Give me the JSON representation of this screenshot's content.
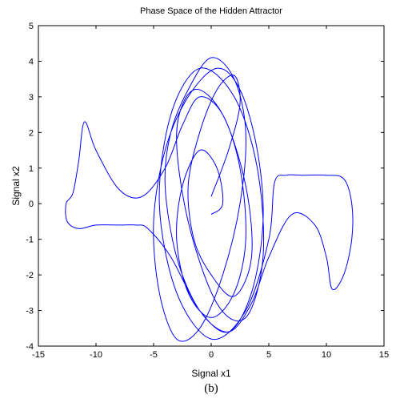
{
  "chart_data": {
    "type": "line",
    "title": "Phase Space of the Hidden Attractor",
    "xlabel": "Signal x1",
    "ylabel": "Signal x2",
    "caption": "(b)",
    "xlim": [
      -15,
      15
    ],
    "ylim": [
      -4,
      5
    ],
    "xticks": [
      -15,
      -10,
      -5,
      0,
      5,
      10,
      15
    ],
    "yticks": [
      -4,
      -3,
      -2,
      -1,
      0,
      1,
      2,
      3,
      4,
      5
    ],
    "grid": false,
    "line_color": "#0000ff",
    "series": [
      {
        "x": [
          0.0,
          1.5,
          2.5,
          2.0,
          0.5,
          -1.0,
          -2.0,
          -1.5,
          0.0,
          2.0,
          3.5,
          3.0,
          1.0,
          -1.5,
          -3.0,
          -2.0,
          0.5,
          3.0,
          4.5,
          4.0,
          2.0,
          -1.0,
          -3.5,
          -4.5,
          -3.0,
          0.0,
          3.0,
          5.0,
          5.5,
          6.5,
          8.0,
          10.0,
          11.5,
          12.2,
          12.2,
          11.5,
          10.5,
          10.0,
          9.0,
          7.0,
          5.0,
          3.5,
          1.5,
          -1.0,
          -3.0,
          -4.0,
          -3.5,
          -2.0,
          0.0,
          2.0,
          3.0,
          2.5,
          1.0,
          -1.0,
          -3.0,
          -4.5,
          -5.0,
          -4.0,
          -2.0,
          0.5,
          2.5,
          4.0,
          4.5,
          3.5,
          1.5,
          -1.0,
          -3.5,
          -5.5,
          -6.5,
          -8.0,
          -10.0,
          -11.5,
          -12.5,
          -12.6,
          -12.0,
          -11.5,
          -11.0,
          -10.0,
          -8.0,
          -6.0,
          -4.0,
          -2.5,
          -1.0,
          1.0,
          2.5,
          3.0,
          2.0,
          0.0,
          -2.0,
          -3.0,
          -2.5,
          -1.0,
          0.5,
          1.0,
          0.0
        ],
        "y": [
          0.2,
          1.5,
          2.8,
          3.6,
          3.2,
          2.0,
          0.5,
          -1.0,
          -2.0,
          -2.6,
          -1.5,
          0.5,
          2.5,
          3.2,
          2.0,
          -0.5,
          -2.8,
          -3.2,
          -1.5,
          1.0,
          3.0,
          3.8,
          2.5,
          0.0,
          -2.5,
          -3.8,
          -3.0,
          -1.0,
          0.6,
          0.8,
          0.8,
          0.8,
          0.7,
          0.0,
          -1.0,
          -2.0,
          -2.4,
          -1.5,
          -0.6,
          -0.3,
          -1.5,
          -2.8,
          -3.6,
          -3.0,
          -1.5,
          0.5,
          2.0,
          3.2,
          4.1,
          3.5,
          2.0,
          0.0,
          -2.0,
          -3.5,
          -3.8,
          -2.5,
          -0.5,
          1.5,
          3.0,
          3.8,
          3.2,
          1.5,
          -0.5,
          -2.5,
          -3.6,
          -3.0,
          -1.5,
          -0.7,
          -0.6,
          -0.6,
          -0.6,
          -0.7,
          -0.5,
          0.0,
          0.3,
          1.2,
          2.3,
          1.5,
          0.4,
          0.2,
          1.0,
          2.2,
          3.0,
          2.5,
          1.0,
          -1.0,
          -2.5,
          -3.2,
          -2.5,
          -1.0,
          0.5,
          1.5,
          1.0,
          0.0,
          -0.3
        ]
      }
    ]
  }
}
